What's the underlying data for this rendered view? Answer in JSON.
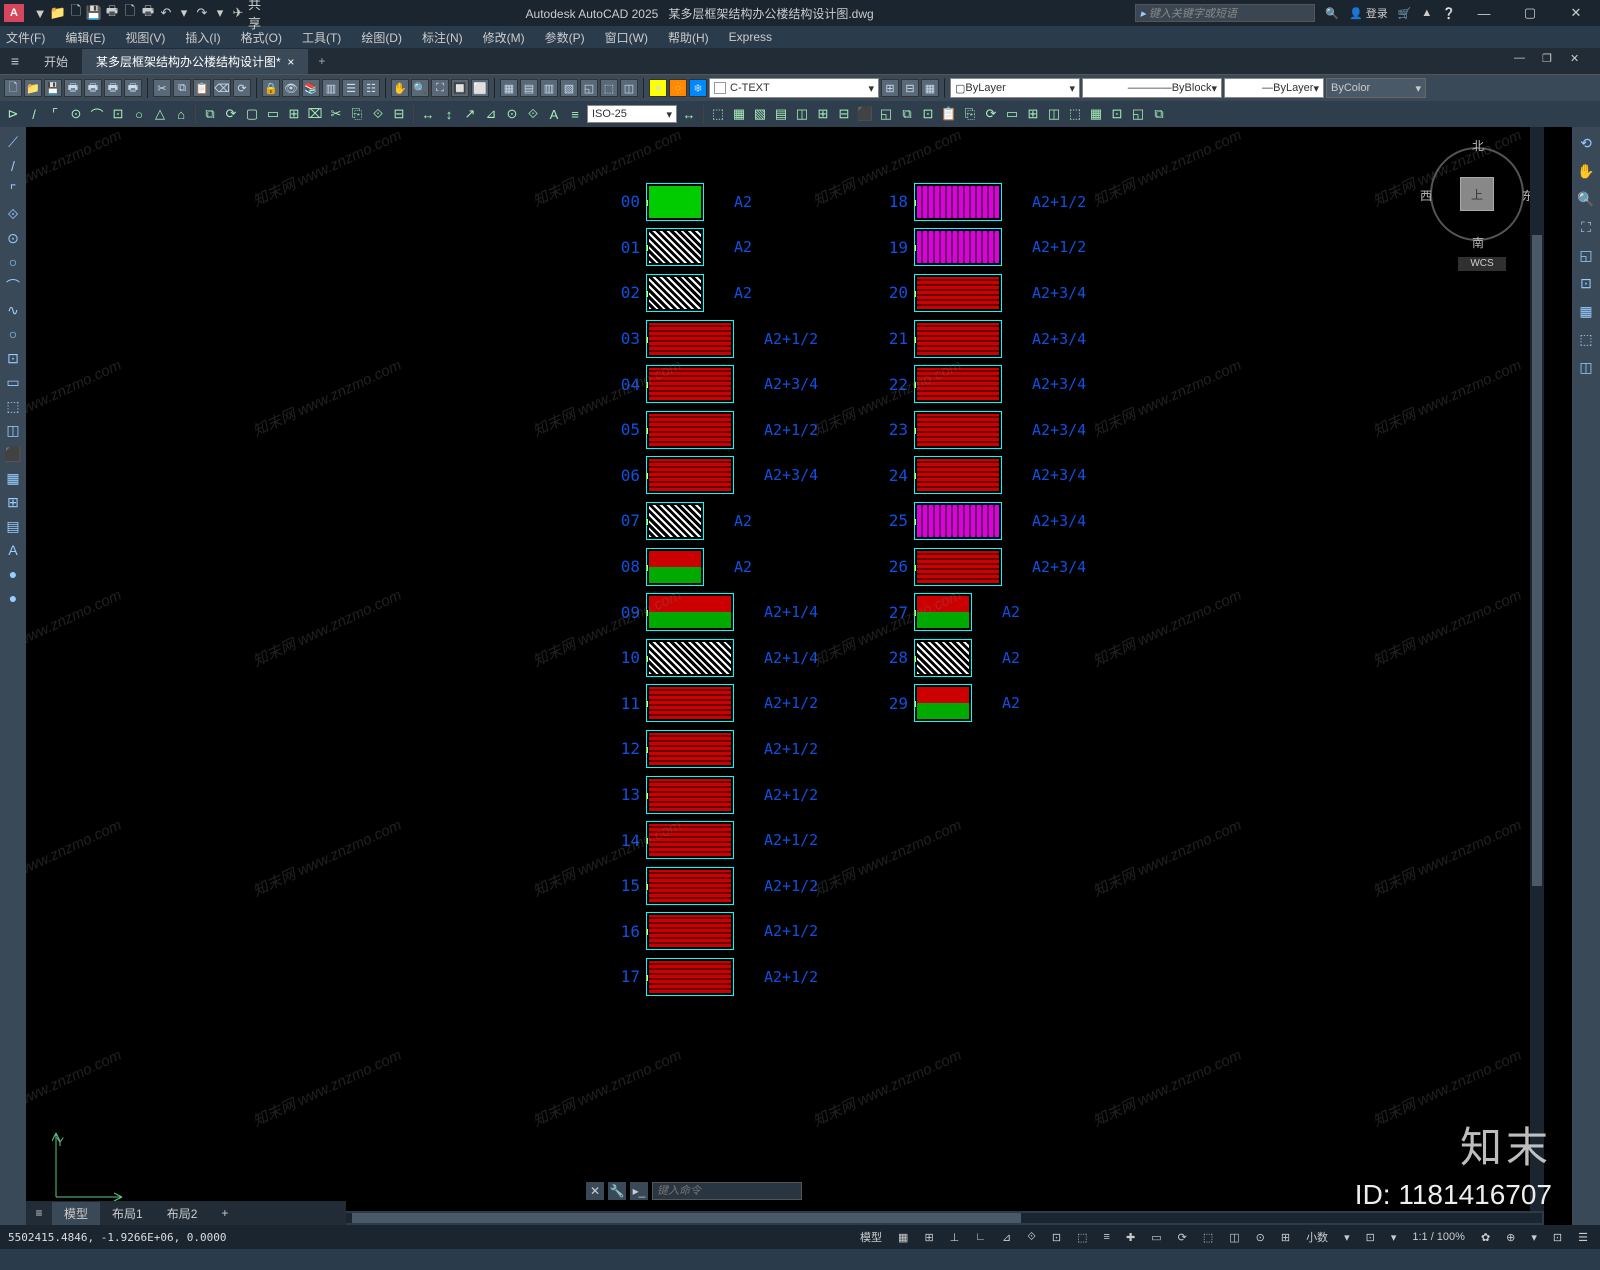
{
  "title": {
    "app": "Autodesk AutoCAD 2025",
    "file": "某多层框架结构办公楼结构设计图.dwg"
  },
  "qat": [
    "▼",
    "📁",
    "🗋",
    "💾",
    "🖶",
    "🗋",
    "🖶",
    "↶",
    "▾",
    "↷",
    "▾",
    "✈",
    "共享"
  ],
  "titleright": {
    "search_placeholder": "键入关键字或短语",
    "login": "登录"
  },
  "menubar": [
    "文件(F)",
    "编辑(E)",
    "视图(V)",
    "插入(I)",
    "格式(O)",
    "工具(T)",
    "绘图(D)",
    "标注(N)",
    "修改(M)",
    "参数(P)",
    "窗口(W)",
    "帮助(H)",
    "Express"
  ],
  "tabs": {
    "start": "开始",
    "doc": "某多层框架结构办公楼结构设计图*"
  },
  "ribbon1": {
    "fileicons": [
      "🗋",
      "📁",
      "💾",
      "🖶",
      "🖶",
      "🖶",
      "🖶"
    ],
    "editicons": [
      "✂",
      "⧉",
      "📋",
      "⌫",
      "⟳"
    ],
    "layericons": [
      "🔒",
      "👁",
      "📚",
      "▥",
      "☰",
      "☷"
    ],
    "handtools": [
      "✋",
      "🔍",
      "⛶",
      "🔲",
      "⬜"
    ],
    "viewicons": [
      "▦",
      "▤",
      "▥",
      "▧",
      "◱",
      "⬚",
      "◫"
    ],
    "colorswatch": "C-TEXT",
    "layer_dropdown": "ByLayer",
    "linetype": "ByBlock",
    "lineweight": "ByLayer",
    "color": "ByColor"
  },
  "ribbon2": {
    "drawtools": [
      "⊳",
      "/",
      "⌜",
      "⊙",
      "⌒",
      "⊡",
      "○",
      "△",
      "⌂"
    ],
    "modtools": [
      "⧉",
      "⟳",
      "▢",
      "▭",
      "⊞",
      "⌧",
      "✂",
      "⎘",
      "⟐",
      "⊟"
    ],
    "dimtools": [
      "↔",
      "↕",
      "↗",
      "⊿",
      "⊙",
      "⟐",
      "A",
      "≡"
    ],
    "dimstyle": "ISO-25",
    "moretools": [
      "⬚",
      "▦",
      "▧",
      "▤",
      "◫",
      "⊞",
      "⊟",
      "⬛",
      "◱",
      "⧉",
      "⊡",
      "📋",
      "⎘",
      "⟳",
      "▭",
      "⊞",
      "◫",
      "⬚",
      "▦",
      "⊡",
      "◱",
      "⧉"
    ]
  },
  "ltools": [
    "⟋",
    "/",
    "⌜",
    "⟐",
    "⊙",
    "○",
    "⌒",
    "∿",
    "○",
    "⊡",
    "▭",
    "⬚",
    "◫",
    "⬛",
    "▦",
    "⊞",
    "▤",
    "A",
    "●",
    "●"
  ],
  "rtools": [
    "⟲",
    "✋",
    "🔍",
    "⛶",
    "◱",
    "⊡",
    "▦",
    "⬚",
    "◫"
  ],
  "viewcube": {
    "top": "上",
    "n": "北",
    "s": "南",
    "w": "西",
    "e": "东",
    "wcs": "WCS"
  },
  "sheets": {
    "col1": [
      {
        "n": "00",
        "s": "A2",
        "t": "green",
        "w": "narrow"
      },
      {
        "n": "01",
        "s": "A2",
        "t": "bw",
        "w": "narrow"
      },
      {
        "n": "02",
        "s": "A2",
        "t": "bw",
        "w": "narrow"
      },
      {
        "n": "03",
        "s": "A2+1/2",
        "t": "red"
      },
      {
        "n": "04",
        "s": "A2+3/4",
        "t": "red"
      },
      {
        "n": "05",
        "s": "A2+1/2",
        "t": "red"
      },
      {
        "n": "06",
        "s": "A2+3/4",
        "t": "red"
      },
      {
        "n": "07",
        "s": "A2",
        "t": "bw",
        "w": "narrow"
      },
      {
        "n": "08",
        "s": "A2",
        "t": "mix",
        "w": "narrow"
      },
      {
        "n": "09",
        "s": "A2+1/4",
        "t": "mix"
      },
      {
        "n": "10",
        "s": "A2+1/4",
        "t": "bw"
      },
      {
        "n": "11",
        "s": "A2+1/2",
        "t": "red"
      },
      {
        "n": "12",
        "s": "A2+1/2",
        "t": "red"
      },
      {
        "n": "13",
        "s": "A2+1/2",
        "t": "red"
      },
      {
        "n": "14",
        "s": "A2+1/2",
        "t": "red"
      },
      {
        "n": "15",
        "s": "A2+1/2",
        "t": "red"
      },
      {
        "n": "16",
        "s": "A2+1/2",
        "t": "red"
      },
      {
        "n": "17",
        "s": "A2+1/2",
        "t": "red"
      }
    ],
    "col2": [
      {
        "n": "18",
        "s": "A2+1/2",
        "t": "mag"
      },
      {
        "n": "19",
        "s": "A2+1/2",
        "t": "mag"
      },
      {
        "n": "20",
        "s": "A2+3/4",
        "t": "red"
      },
      {
        "n": "21",
        "s": "A2+3/4",
        "t": "red"
      },
      {
        "n": "22",
        "s": "A2+3/4",
        "t": "red"
      },
      {
        "n": "23",
        "s": "A2+3/4",
        "t": "red"
      },
      {
        "n": "24",
        "s": "A2+3/4",
        "t": "red"
      },
      {
        "n": "25",
        "s": "A2+3/4",
        "t": "mag"
      },
      {
        "n": "26",
        "s": "A2+3/4",
        "t": "red"
      },
      {
        "n": "27",
        "s": "A2",
        "t": "mix",
        "w": "narrow"
      },
      {
        "n": "28",
        "s": "A2",
        "t": "bw",
        "w": "narrow"
      },
      {
        "n": "29",
        "s": "A2",
        "t": "mix",
        "w": "narrow"
      }
    ]
  },
  "ucs": {
    "x": "X",
    "y": "Y"
  },
  "cmdline": {
    "placeholder": "键入命令"
  },
  "mtabs": {
    "model": "模型",
    "l1": "布局1",
    "l2": "布局2"
  },
  "statusbar": {
    "coords": "5502415.4846, -1.9266E+06, 0.0000",
    "items": [
      "模型",
      "▦",
      "⊞",
      "⊥",
      "∟",
      "⊿",
      "⟐",
      "⊡",
      "⬚",
      "≡",
      "✚",
      "▭",
      "⟳",
      "⬚",
      "◫",
      "⊙",
      "⊞",
      "小数",
      "▾",
      "⊡",
      "▾",
      "1:1 / 100%",
      "✿",
      "⊕",
      "▾",
      "⊡",
      "☰"
    ]
  },
  "watermark": {
    "text": "知末网 www.znzmo.com",
    "big": "知末",
    "id": "ID: 1181416707"
  }
}
